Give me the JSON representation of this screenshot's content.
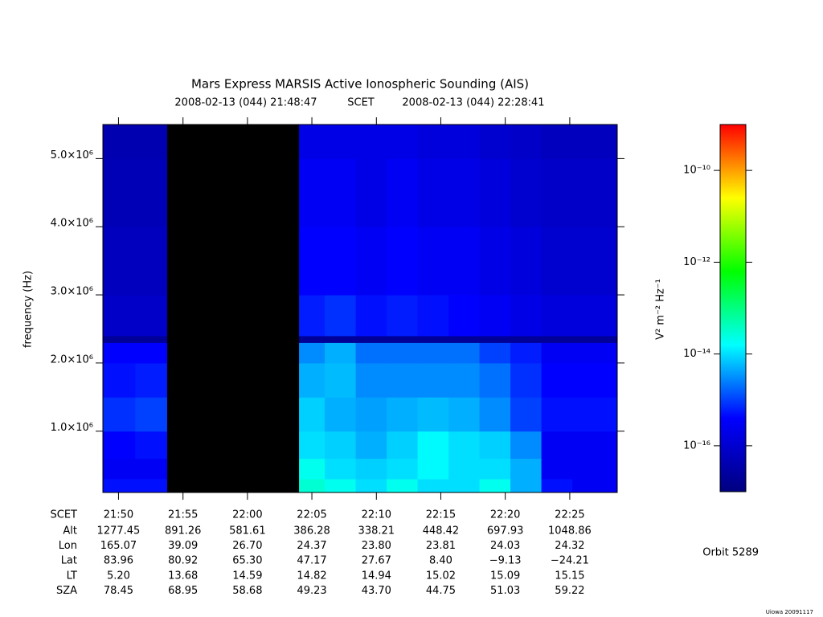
{
  "chart_data": {
    "type": "spectrogram",
    "title": "Mars Express MARSIS Active Ionospheric Sounding (AIS)",
    "start_time": "2008-02-13 (044) 21:48:47",
    "time_label": "SCET",
    "end_time": "2008-02-13 (044) 22:28:41",
    "ylabel": "frequency (Hz)",
    "zlabel": "V² m⁻² Hz⁻¹",
    "xlim": [
      21.8131,
      22.4781
    ],
    "xticks": [
      {
        "value": 21.8333,
        "label": "21:50"
      },
      {
        "value": 21.9167,
        "label": "21:55"
      },
      {
        "value": 22.0,
        "label": "22:00"
      },
      {
        "value": 22.0833,
        "label": "22:05"
      },
      {
        "value": 22.1667,
        "label": "22:10"
      },
      {
        "value": 22.25,
        "label": "22:15"
      },
      {
        "value": 22.3333,
        "label": "22:20"
      },
      {
        "value": 22.4167,
        "label": "22:25"
      }
    ],
    "ylim": [
      100000,
      5500000
    ],
    "yticks": [
      {
        "value": 1000000,
        "label": "1.0×10⁶"
      },
      {
        "value": 2000000,
        "label": "2.0×10⁶"
      },
      {
        "value": 3000000,
        "label": "3.0×10⁶"
      },
      {
        "value": 4000000,
        "label": "4.0×10⁶"
      },
      {
        "value": 5000000,
        "label": "5.0×10⁶"
      }
    ],
    "zscale": "log",
    "zlim": [
      1e-17,
      1e-09
    ],
    "zticks": [
      {
        "value": 1e-10,
        "label": "10⁻¹⁰"
      },
      {
        "value": 1e-12,
        "label": "10⁻¹²"
      },
      {
        "value": 1e-14,
        "label": "10⁻¹⁴"
      },
      {
        "value": 1e-16,
        "label": "10⁻¹⁶"
      }
    ],
    "colormap": [
      "#000080",
      "#0000ff",
      "#00ffff",
      "#00ff00",
      "#ffff00",
      "#ff0000"
    ],
    "missing_color": "#000000",
    "xbins": [
      21.8131,
      21.855,
      21.8962,
      22.0667,
      22.1,
      22.14,
      22.18,
      22.22,
      22.26,
      22.3,
      22.34,
      22.38,
      22.42,
      22.4781
    ],
    "ybins": [
      100000,
      300000,
      600000,
      1000000,
      1500000,
      2000000,
      2300000,
      2400000,
      3000000,
      4000000,
      5000000,
      5500000
    ],
    "z": [
      [
        5e-16,
        5e-16,
        null,
        3e-14,
        2e-14,
        1e-14,
        2e-14,
        1e-14,
        1e-14,
        2e-14,
        5e-15,
        5e-16,
        3e-16
      ],
      [
        3e-16,
        3e-16,
        null,
        2e-14,
        1e-14,
        8e-15,
        1e-14,
        1.5e-14,
        1e-14,
        1e-14,
        5e-15,
        3e-16,
        3e-16
      ],
      [
        4e-16,
        5e-16,
        null,
        1e-14,
        8e-15,
        5e-15,
        8e-15,
        1.5e-14,
        1e-14,
        8e-15,
        3e-15,
        3e-16,
        3e-16
      ],
      [
        8e-16,
        1e-15,
        null,
        8e-15,
        5e-15,
        4e-15,
        5e-15,
        6e-15,
        5e-15,
        3e-15,
        1e-15,
        5e-16,
        5e-16
      ],
      [
        5e-16,
        6e-16,
        null,
        5e-15,
        6e-15,
        3e-15,
        3e-15,
        3e-15,
        3e-15,
        2e-15,
        8e-16,
        4e-16,
        4e-16
      ],
      [
        4e-16,
        4e-16,
        null,
        3e-15,
        5e-15,
        2e-15,
        2e-15,
        2e-15,
        2e-15,
        1e-15,
        6e-16,
        3e-16,
        3e-16
      ],
      [
        2e-17,
        2e-17,
        null,
        2e-17,
        2e-17,
        2e-17,
        2e-17,
        2e-17,
        2e-17,
        2e-17,
        2e-17,
        2e-17,
        2e-17
      ],
      [
        8e-17,
        8e-17,
        null,
        6e-16,
        8e-16,
        5e-16,
        6e-16,
        5e-16,
        4e-16,
        3e-16,
        2e-16,
        1.5e-16,
        1.5e-16
      ],
      [
        6e-17,
        6e-17,
        null,
        4e-16,
        4e-16,
        3e-16,
        4e-16,
        3e-16,
        3e-16,
        2e-16,
        1.5e-16,
        1e-16,
        1e-16
      ],
      [
        5e-17,
        5e-17,
        null,
        3e-16,
        3e-16,
        2e-16,
        3e-16,
        2e-16,
        2e-16,
        1.5e-16,
        1e-16,
        8e-17,
        8e-17
      ],
      [
        4e-17,
        4e-17,
        null,
        2e-16,
        2e-16,
        2e-16,
        2e-16,
        1.5e-16,
        1.5e-16,
        1e-16,
        8e-17,
        6e-17,
        6e-17
      ]
    ],
    "ephemeris": {
      "scet_label": "SCET",
      "rows": [
        {
          "label": "Alt",
          "values": [
            "1277.45",
            "891.26",
            "581.61",
            "386.28",
            "338.21",
            "448.42",
            "697.93",
            "1048.86"
          ]
        },
        {
          "label": "Lon",
          "values": [
            "165.07",
            "39.09",
            "26.70",
            "24.37",
            "23.80",
            "23.81",
            "24.03",
            "24.32"
          ]
        },
        {
          "label": "Lat",
          "values": [
            "83.96",
            "80.92",
            "65.30",
            "47.17",
            "27.67",
            "8.40",
            "−9.13",
            "−24.21"
          ]
        },
        {
          "label": "LT",
          "values": [
            "5.20",
            "13.68",
            "14.59",
            "14.82",
            "14.94",
            "15.02",
            "15.09",
            "15.15"
          ]
        },
        {
          "label": "SZA",
          "values": [
            "78.45",
            "68.95",
            "58.68",
            "49.23",
            "43.70",
            "44.75",
            "51.03",
            "59.22"
          ]
        }
      ]
    },
    "orbit": "Orbit 5289",
    "footer": "Uiowa 20091117"
  }
}
